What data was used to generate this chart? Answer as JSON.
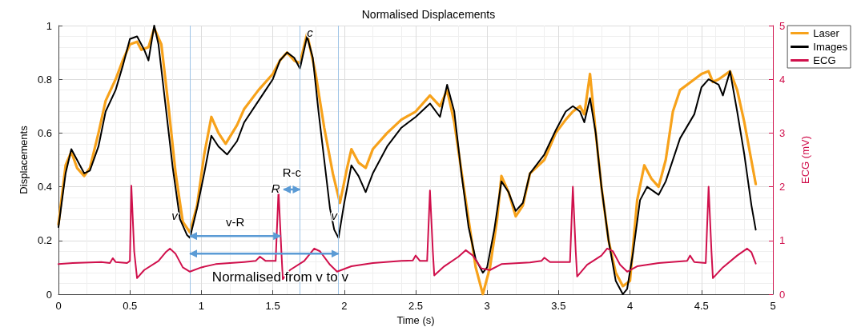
{
  "chart_data": {
    "type": "line",
    "title": "Normalised Displacements",
    "xlabel": "Time (s)",
    "ylabel": "Displacements",
    "y2label": "ECG (mV)",
    "xlim": [
      0,
      5
    ],
    "xticks": [
      0,
      0.5,
      1,
      1.5,
      2,
      2.5,
      3,
      3.5,
      4,
      4.5,
      5
    ],
    "ylim": [
      0,
      1
    ],
    "yticks": [
      0,
      0.2,
      0.4,
      0.6,
      0.8,
      1
    ],
    "y2lim": [
      0,
      5
    ],
    "y2ticks": [
      0,
      1,
      2,
      3,
      4,
      5
    ],
    "grid": true,
    "legend": "top right",
    "marker": "none",
    "line_style": "solid",
    "series": [
      {
        "name": "Laser",
        "color": "#f7a21b",
        "x": [
          0,
          0.05,
          0.09,
          0.13,
          0.18,
          0.22,
          0.28,
          0.33,
          0.4,
          0.45,
          0.5,
          0.55,
          0.58,
          0.63,
          0.67,
          0.72,
          0.77,
          0.82,
          0.87,
          0.92,
          0.97,
          1.02,
          1.07,
          1.12,
          1.17,
          1.25,
          1.3,
          1.4,
          1.5,
          1.55,
          1.6,
          1.65,
          1.69,
          1.74,
          1.8,
          1.86,
          1.92,
          1.97,
          2.02,
          2.05,
          2.1,
          2.15,
          2.2,
          2.3,
          2.4,
          2.5,
          2.6,
          2.67,
          2.72,
          2.77,
          2.85,
          2.92,
          2.97,
          3.02,
          3.07,
          3.1,
          3.15,
          3.2,
          3.25,
          3.3,
          3.4,
          3.48,
          3.55,
          3.6,
          3.65,
          3.68,
          3.72,
          3.76,
          3.8,
          3.85,
          3.9,
          3.95,
          4.0,
          4.05,
          4.1,
          4.15,
          4.2,
          4.25,
          4.3,
          4.35,
          4.45,
          4.5,
          4.55,
          4.58,
          4.62,
          4.7,
          4.75,
          4.8,
          4.88
        ],
        "values": [
          0.26,
          0.48,
          0.53,
          0.47,
          0.44,
          0.47,
          0.6,
          0.72,
          0.8,
          0.87,
          0.93,
          0.94,
          0.91,
          0.92,
          0.99,
          0.93,
          0.7,
          0.45,
          0.27,
          0.23,
          0.33,
          0.52,
          0.66,
          0.6,
          0.56,
          0.63,
          0.69,
          0.76,
          0.82,
          0.87,
          0.9,
          0.87,
          0.86,
          0.97,
          0.82,
          0.62,
          0.45,
          0.34,
          0.47,
          0.54,
          0.49,
          0.47,
          0.54,
          0.6,
          0.65,
          0.68,
          0.74,
          0.7,
          0.76,
          0.64,
          0.35,
          0.1,
          0.0,
          0.1,
          0.28,
          0.44,
          0.38,
          0.29,
          0.33,
          0.45,
          0.5,
          0.6,
          0.65,
          0.68,
          0.7,
          0.67,
          0.82,
          0.6,
          0.4,
          0.2,
          0.08,
          0.03,
          0.05,
          0.35,
          0.48,
          0.43,
          0.4,
          0.5,
          0.68,
          0.76,
          0.8,
          0.82,
          0.83,
          0.79,
          0.8,
          0.83,
          0.76,
          0.64,
          0.41
        ]
      },
      {
        "name": "Images",
        "color": "#000000",
        "x": [
          0,
          0.05,
          0.09,
          0.13,
          0.18,
          0.22,
          0.28,
          0.33,
          0.4,
          0.45,
          0.5,
          0.55,
          0.6,
          0.63,
          0.67,
          0.7,
          0.75,
          0.8,
          0.85,
          0.9,
          0.92,
          0.97,
          1.02,
          1.07,
          1.12,
          1.18,
          1.25,
          1.3,
          1.4,
          1.45,
          1.5,
          1.55,
          1.6,
          1.65,
          1.69,
          1.74,
          1.78,
          1.82,
          1.86,
          1.9,
          1.93,
          1.96,
          2.0,
          2.05,
          2.1,
          2.15,
          2.2,
          2.3,
          2.4,
          2.5,
          2.6,
          2.67,
          2.72,
          2.77,
          2.82,
          2.87,
          2.92,
          2.97,
          3.0,
          3.05,
          3.1,
          3.15,
          3.2,
          3.25,
          3.3,
          3.4,
          3.48,
          3.55,
          3.6,
          3.65,
          3.68,
          3.72,
          3.76,
          3.8,
          3.85,
          3.9,
          3.95,
          3.98,
          4.02,
          4.07,
          4.12,
          4.2,
          4.25,
          4.35,
          4.45,
          4.5,
          4.55,
          4.62,
          4.65,
          4.7,
          4.75,
          4.8,
          4.85,
          4.88
        ],
        "values": [
          0.25,
          0.45,
          0.54,
          0.5,
          0.45,
          0.46,
          0.55,
          0.68,
          0.76,
          0.85,
          0.95,
          0.96,
          0.91,
          0.87,
          1.0,
          0.93,
          0.7,
          0.47,
          0.28,
          0.22,
          0.21,
          0.32,
          0.45,
          0.59,
          0.55,
          0.52,
          0.57,
          0.64,
          0.72,
          0.76,
          0.8,
          0.87,
          0.9,
          0.88,
          0.84,
          0.96,
          0.88,
          0.68,
          0.5,
          0.32,
          0.24,
          0.21,
          0.34,
          0.48,
          0.44,
          0.38,
          0.45,
          0.55,
          0.62,
          0.66,
          0.71,
          0.66,
          0.78,
          0.68,
          0.45,
          0.25,
          0.13,
          0.08,
          0.1,
          0.24,
          0.42,
          0.38,
          0.31,
          0.34,
          0.45,
          0.52,
          0.61,
          0.68,
          0.7,
          0.68,
          0.64,
          0.73,
          0.6,
          0.4,
          0.2,
          0.05,
          0.0,
          0.02,
          0.15,
          0.35,
          0.4,
          0.37,
          0.42,
          0.58,
          0.67,
          0.77,
          0.8,
          0.78,
          0.74,
          0.83,
          0.68,
          0.52,
          0.33,
          0.24
        ]
      },
      {
        "name": "ECG",
        "color": "#d0104c",
        "axis": "y2",
        "x": [
          0,
          0.1,
          0.3,
          0.36,
          0.38,
          0.4,
          0.48,
          0.5,
          0.51,
          0.53,
          0.55,
          0.6,
          0.7,
          0.75,
          0.78,
          0.82,
          0.87,
          0.92,
          1.0,
          1.1,
          1.3,
          1.38,
          1.41,
          1.45,
          1.52,
          1.54,
          1.56,
          1.57,
          1.62,
          1.72,
          1.79,
          1.83,
          1.9,
          1.95,
          2.05,
          2.2,
          2.4,
          2.48,
          2.5,
          2.53,
          2.58,
          2.6,
          2.62,
          2.63,
          2.7,
          2.8,
          2.85,
          2.9,
          2.96,
          3.02,
          3.1,
          3.3,
          3.38,
          3.4,
          3.44,
          3.58,
          3.6,
          3.62,
          3.63,
          3.7,
          3.8,
          3.84,
          3.88,
          3.93,
          3.98,
          4.05,
          4.2,
          4.4,
          4.42,
          4.45,
          4.53,
          4.55,
          4.57,
          4.58,
          4.65,
          4.75,
          4.82,
          4.85,
          4.88
        ],
        "values": [
          0.56,
          0.58,
          0.6,
          0.58,
          0.67,
          0.6,
          0.58,
          0.62,
          2.02,
          0.8,
          0.3,
          0.45,
          0.62,
          0.78,
          0.85,
          0.75,
          0.5,
          0.42,
          0.5,
          0.56,
          0.6,
          0.62,
          0.7,
          0.62,
          0.62,
          1.93,
          0.8,
          0.28,
          0.45,
          0.62,
          0.85,
          0.8,
          0.55,
          0.42,
          0.52,
          0.58,
          0.62,
          0.63,
          0.72,
          0.62,
          0.62,
          1.93,
          0.8,
          0.35,
          0.52,
          0.7,
          0.82,
          0.72,
          0.48,
          0.45,
          0.56,
          0.59,
          0.62,
          0.68,
          0.6,
          0.6,
          2.0,
          0.8,
          0.33,
          0.55,
          0.72,
          0.85,
          0.8,
          0.55,
          0.42,
          0.52,
          0.58,
          0.62,
          0.72,
          0.6,
          0.58,
          2.0,
          0.8,
          0.3,
          0.5,
          0.72,
          0.85,
          0.78,
          0.57
        ]
      }
    ],
    "ref_lines": [
      {
        "axis": "x",
        "value": 0.92,
        "label": null,
        "color": "#9dc3e6"
      },
      {
        "axis": "x",
        "value": 1.69,
        "label": null,
        "color": "#9dc3e6"
      },
      {
        "axis": "x",
        "value": 1.96,
        "label": null,
        "color": "#9dc3e6"
      }
    ],
    "annotations": [
      {
        "text": "v",
        "x": 0.88,
        "y": 0.27
      },
      {
        "text": "R",
        "x": 1.52,
        "y": 0.39
      },
      {
        "text": "c",
        "x": 1.76,
        "y": 0.97
      },
      {
        "text": "v",
        "x": 1.93,
        "y": 0.29
      },
      "v-R",
      "R-c",
      "Normalised from v to v"
    ]
  }
}
